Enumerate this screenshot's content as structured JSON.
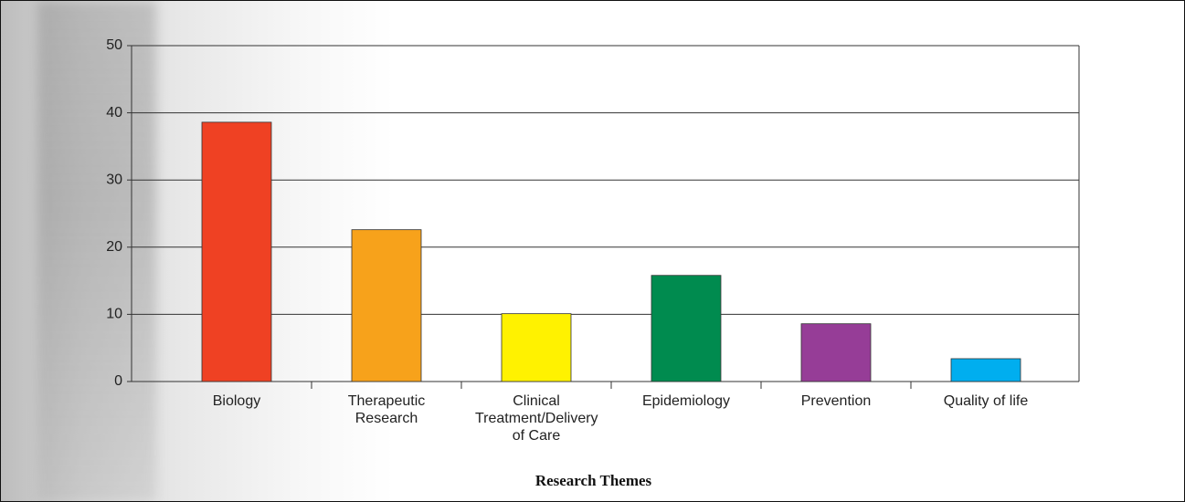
{
  "chart_data": {
    "type": "bar",
    "x_label": "Research Themes",
    "categories": [
      "Biology",
      "Therapeutic Research",
      "Clinical Treatment/Delivery of Care",
      "Epidemiology",
      "Prevention",
      "Quality of life"
    ],
    "values": [
      38.6,
      22.6,
      10.1,
      15.8,
      8.6,
      3.4
    ],
    "colors": [
      "#ef4123",
      "#f7a21b",
      "#fff200",
      "#008b4f",
      "#963d97",
      "#00aeef"
    ],
    "ylim": [
      0,
      50
    ],
    "yticks": [
      0,
      10,
      20,
      30,
      40,
      50
    ],
    "grid": true
  }
}
